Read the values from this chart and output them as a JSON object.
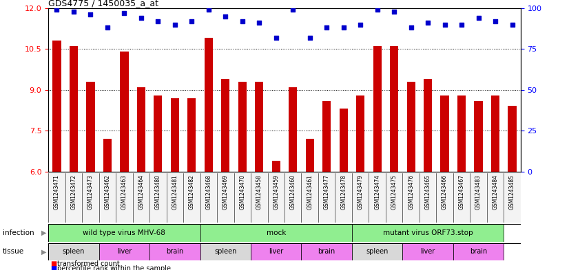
{
  "title": "GDS4775 / 1450035_a_at",
  "samples": [
    "GSM1243471",
    "GSM1243472",
    "GSM1243473",
    "GSM1243462",
    "GSM1243463",
    "GSM1243464",
    "GSM1243480",
    "GSM1243481",
    "GSM1243482",
    "GSM1243468",
    "GSM1243469",
    "GSM1243470",
    "GSM1243458",
    "GSM1243459",
    "GSM1243460",
    "GSM1243461",
    "GSM1243477",
    "GSM1243478",
    "GSM1243479",
    "GSM1243474",
    "GSM1243475",
    "GSM1243476",
    "GSM1243465",
    "GSM1243466",
    "GSM1243467",
    "GSM1243483",
    "GSM1243484",
    "GSM1243485"
  ],
  "bar_values": [
    10.8,
    10.6,
    9.3,
    7.2,
    10.4,
    9.1,
    8.8,
    8.7,
    8.7,
    10.9,
    9.4,
    9.3,
    9.3,
    6.4,
    9.1,
    7.2,
    8.6,
    8.3,
    8.8,
    10.6,
    10.6,
    9.3,
    9.4,
    8.8,
    8.8,
    8.6,
    8.8,
    8.4
  ],
  "percentile_values": [
    99,
    98,
    96,
    88,
    97,
    94,
    92,
    90,
    92,
    99,
    95,
    92,
    91,
    82,
    99,
    82,
    88,
    88,
    90,
    99,
    98,
    88,
    91,
    90,
    90,
    94,
    92,
    90
  ],
  "ylim_left": [
    6,
    12
  ],
  "ylim_right": [
    0,
    100
  ],
  "yticks_left": [
    6,
    7.5,
    9,
    10.5,
    12
  ],
  "yticks_right": [
    0,
    25,
    50,
    75,
    100
  ],
  "bar_color": "#cc0000",
  "dot_color": "#0000cc",
  "infection_groups": [
    {
      "label": "wild type virus MHV-68",
      "start": 0,
      "end": 9,
      "color": "#90ee90"
    },
    {
      "label": "mock",
      "start": 9,
      "end": 18,
      "color": "#90ee90"
    },
    {
      "label": "mutant virus ORF73.stop",
      "start": 18,
      "end": 27,
      "color": "#90ee90"
    }
  ],
  "tissue_groups": [
    {
      "label": "spleen",
      "start": 0,
      "end": 3,
      "color": "#d8d8d8"
    },
    {
      "label": "liver",
      "start": 3,
      "end": 6,
      "color": "#ee82ee"
    },
    {
      "label": "brain",
      "start": 6,
      "end": 9,
      "color": "#ee82ee"
    },
    {
      "label": "spleen",
      "start": 9,
      "end": 12,
      "color": "#d8d8d8"
    },
    {
      "label": "liver",
      "start": 12,
      "end": 15,
      "color": "#ee82ee"
    },
    {
      "label": "brain",
      "start": 15,
      "end": 18,
      "color": "#ee82ee"
    },
    {
      "label": "spleen",
      "start": 18,
      "end": 21,
      "color": "#d8d8d8"
    },
    {
      "label": "liver",
      "start": 21,
      "end": 24,
      "color": "#ee82ee"
    },
    {
      "label": "brain",
      "start": 24,
      "end": 27,
      "color": "#ee82ee"
    }
  ]
}
